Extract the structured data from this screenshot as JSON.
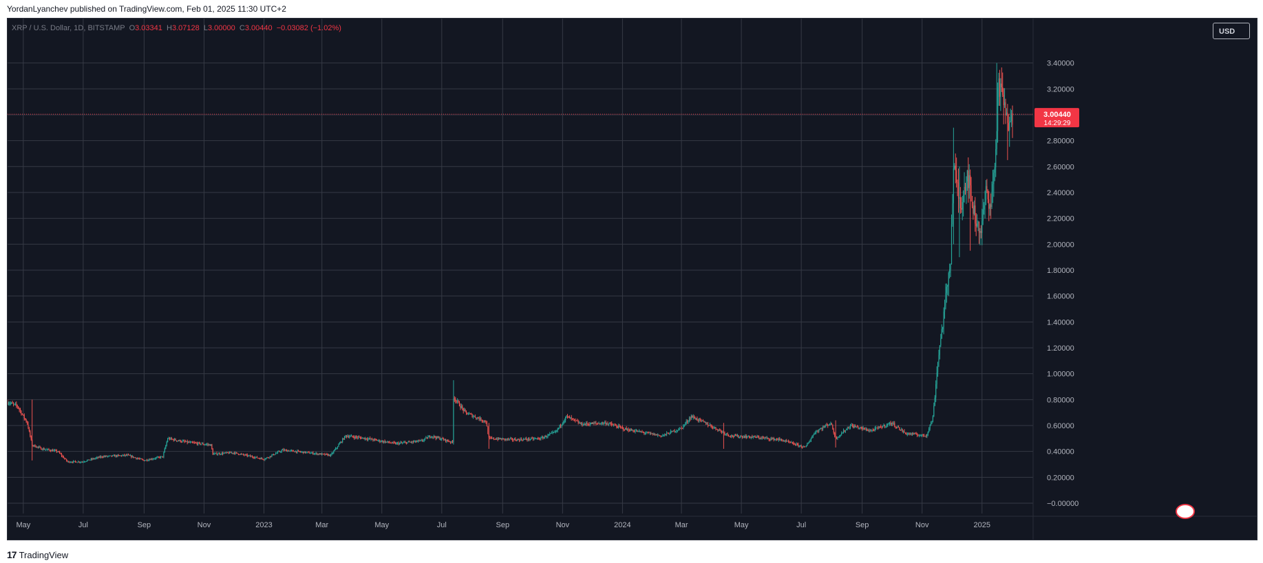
{
  "header": {
    "published": "YordanLyanchev published on TradingView.com, Feb 01, 2025 11:30 UTC+2"
  },
  "legend": {
    "symbol": "XRP / U.S. Dollar, 1D, BITSTAMP",
    "o_label": "O",
    "o": "3.03341",
    "h_label": "H",
    "h": "3.07128",
    "l_label": "L",
    "l": "3.00000",
    "c_label": "C",
    "c": "3.00440",
    "change": "−0.03082 (−1.02%)"
  },
  "currency": "USD",
  "price_label": {
    "price": "3.00440",
    "countdown": "14:29:29"
  },
  "footer": {
    "brand": "TradingView",
    "logo": "tradingview-logo-icon"
  },
  "colors": {
    "up": "#26a69a",
    "down": "#ef5350",
    "bg": "#131722",
    "grid": "#363a45",
    "price_line": "#f23645"
  },
  "chart_data": {
    "type": "candlestick",
    "series_name": "XRP / U.S. Dollar, 1D, BITSTAMP",
    "x_axis_labels": [
      "May",
      "Jul",
      "Sep",
      "Nov",
      "2023",
      "Mar",
      "May",
      "Jul",
      "Sep",
      "Nov",
      "2024",
      "Mar",
      "May",
      "Jul",
      "Sep",
      "Nov",
      "2025"
    ],
    "y_axis_labels": [
      "3.40000",
      "3.20000",
      "3.00000",
      "2.80000",
      "2.60000",
      "2.40000",
      "2.20000",
      "2.00000",
      "1.80000",
      "1.60000",
      "1.40000",
      "1.20000",
      "1.00000",
      "0.80000",
      "0.60000",
      "0.40000",
      "0.20000",
      "−0.00000"
    ],
    "ylim": [
      -0.0,
      3.6
    ],
    "last_price": 3.0044,
    "x_range": [
      "2022-04-15",
      "2025-02-01"
    ],
    "price_path": [
      [
        "2022-04-15",
        0.78
      ],
      [
        "2022-04-25",
        0.75
      ],
      [
        "2022-05-05",
        0.62
      ],
      [
        "2022-05-10",
        0.45
      ],
      [
        "2022-05-20",
        0.42
      ],
      [
        "2022-06-05",
        0.4
      ],
      [
        "2022-06-15",
        0.32
      ],
      [
        "2022-06-30",
        0.32
      ],
      [
        "2022-07-20",
        0.36
      ],
      [
        "2022-08-15",
        0.37
      ],
      [
        "2022-09-01",
        0.33
      ],
      [
        "2022-09-20",
        0.36
      ],
      [
        "2022-09-25",
        0.5
      ],
      [
        "2022-10-15",
        0.47
      ],
      [
        "2022-11-08",
        0.45
      ],
      [
        "2022-11-10",
        0.38
      ],
      [
        "2022-12-01",
        0.39
      ],
      [
        "2023-01-01",
        0.34
      ],
      [
        "2023-01-20",
        0.41
      ],
      [
        "2023-02-15",
        0.39
      ],
      [
        "2023-03-10",
        0.37
      ],
      [
        "2023-03-25",
        0.52
      ],
      [
        "2023-04-15",
        0.5
      ],
      [
        "2023-05-15",
        0.46
      ],
      [
        "2023-06-10",
        0.48
      ],
      [
        "2023-06-20",
        0.52
      ],
      [
        "2023-07-12",
        0.47
      ],
      [
        "2023-07-13",
        0.82
      ],
      [
        "2023-07-25",
        0.7
      ],
      [
        "2023-08-15",
        0.63
      ],
      [
        "2023-08-18",
        0.5
      ],
      [
        "2023-09-15",
        0.49
      ],
      [
        "2023-10-10",
        0.5
      ],
      [
        "2023-10-25",
        0.55
      ],
      [
        "2023-11-05",
        0.67
      ],
      [
        "2023-11-20",
        0.61
      ],
      [
        "2023-12-15",
        0.62
      ],
      [
        "2024-01-05",
        0.57
      ],
      [
        "2024-02-10",
        0.52
      ],
      [
        "2024-03-01",
        0.58
      ],
      [
        "2024-03-11",
        0.67
      ],
      [
        "2024-03-25",
        0.62
      ],
      [
        "2024-04-12",
        0.55
      ],
      [
        "2024-04-20",
        0.52
      ],
      [
        "2024-05-15",
        0.51
      ],
      [
        "2024-06-10",
        0.49
      ],
      [
        "2024-07-05",
        0.43
      ],
      [
        "2024-07-15",
        0.55
      ],
      [
        "2024-07-31",
        0.62
      ],
      [
        "2024-08-05",
        0.5
      ],
      [
        "2024-08-20",
        0.6
      ],
      [
        "2024-09-10",
        0.56
      ],
      [
        "2024-10-01",
        0.62
      ],
      [
        "2024-10-15",
        0.54
      ],
      [
        "2024-11-05",
        0.52
      ],
      [
        "2024-11-12",
        0.66
      ],
      [
        "2024-11-17",
        1.1
      ],
      [
        "2024-11-23",
        1.45
      ],
      [
        "2024-11-30",
        1.9
      ],
      [
        "2024-12-03",
        2.6
      ],
      [
        "2024-12-10",
        2.3
      ],
      [
        "2024-12-17",
        2.55
      ],
      [
        "2024-12-25",
        2.2
      ],
      [
        "2024-12-31",
        2.1
      ],
      [
        "2025-01-05",
        2.4
      ],
      [
        "2025-01-10",
        2.3
      ],
      [
        "2025-01-15",
        2.7
      ],
      [
        "2025-01-17",
        3.2
      ],
      [
        "2025-01-22",
        3.15
      ],
      [
        "2025-01-27",
        2.9
      ],
      [
        "2025-01-31",
        3.09
      ],
      [
        "2025-02-01",
        3.0
      ]
    ],
    "spikes": [
      [
        "2022-05-10",
        0.8,
        0.33
      ],
      [
        "2023-07-13",
        0.95,
        0.47
      ],
      [
        "2023-08-18",
        0.62,
        0.42
      ],
      [
        "2024-04-13",
        0.62,
        0.42
      ],
      [
        "2024-08-05",
        0.64,
        0.43
      ],
      [
        "2024-12-03",
        2.9,
        2.0
      ],
      [
        "2024-12-09",
        2.6,
        1.9
      ],
      [
        "2024-12-20",
        2.45,
        1.95
      ],
      [
        "2025-01-16",
        3.4,
        2.7
      ],
      [
        "2025-01-27",
        3.0,
        2.65
      ]
    ]
  }
}
